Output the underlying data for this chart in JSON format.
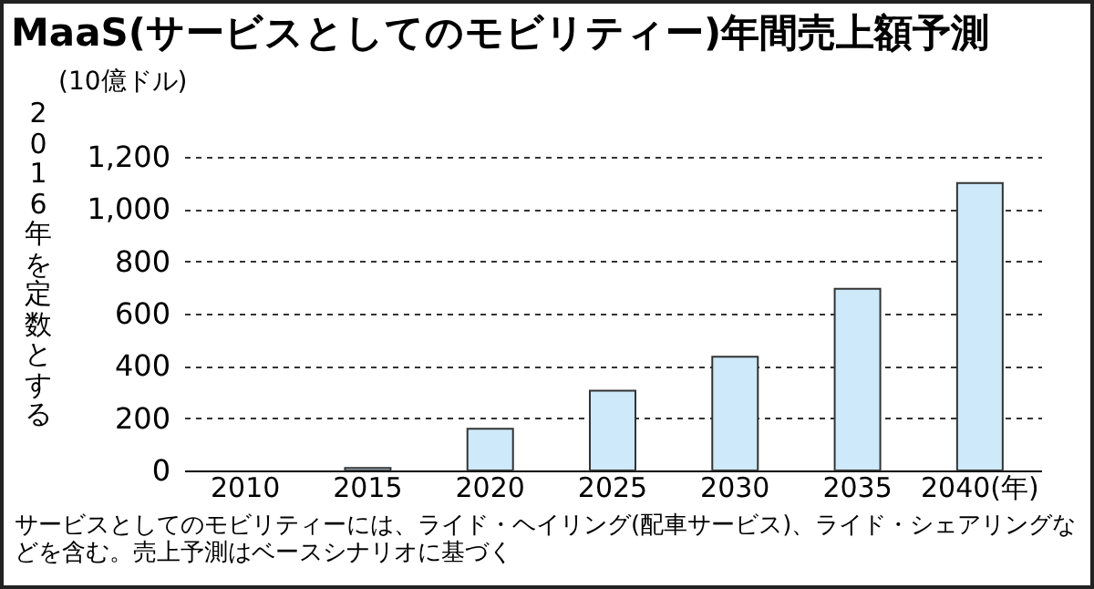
{
  "chart_data": {
    "type": "bar",
    "title": "MaaS(サービスとしてのモビリティー)年間売上額予測",
    "subtitle": "(10億ドル)",
    "ylabel": "2016年を定数とする",
    "categories": [
      "2010",
      "2015",
      "2020",
      "2025",
      "2030",
      "2035",
      "2040(年)"
    ],
    "values": [
      null,
      10,
      160,
      305,
      435,
      695,
      1100
    ],
    "color": "#cde9fa",
    "ylim": [
      0,
      1200
    ],
    "yticks": [
      0,
      {
        "value": 200,
        "label": "200"
      },
      {
        "value": 400,
        "label": "400"
      },
      {
        "value": 600,
        "label": "600"
      },
      {
        "value": 800,
        "label": "800"
      },
      {
        "value": 1000,
        "label": "1,000"
      },
      {
        "value": 1200,
        "label": "1,200"
      }
    ],
    "grid": "y",
    "annotations": [
      "サービスとしてのモビリティーには、ライド・ヘイリング(配車サービス)、ライド・シェアリングなどを含む。売上予測はベースシナリオに基づく"
    ]
  }
}
